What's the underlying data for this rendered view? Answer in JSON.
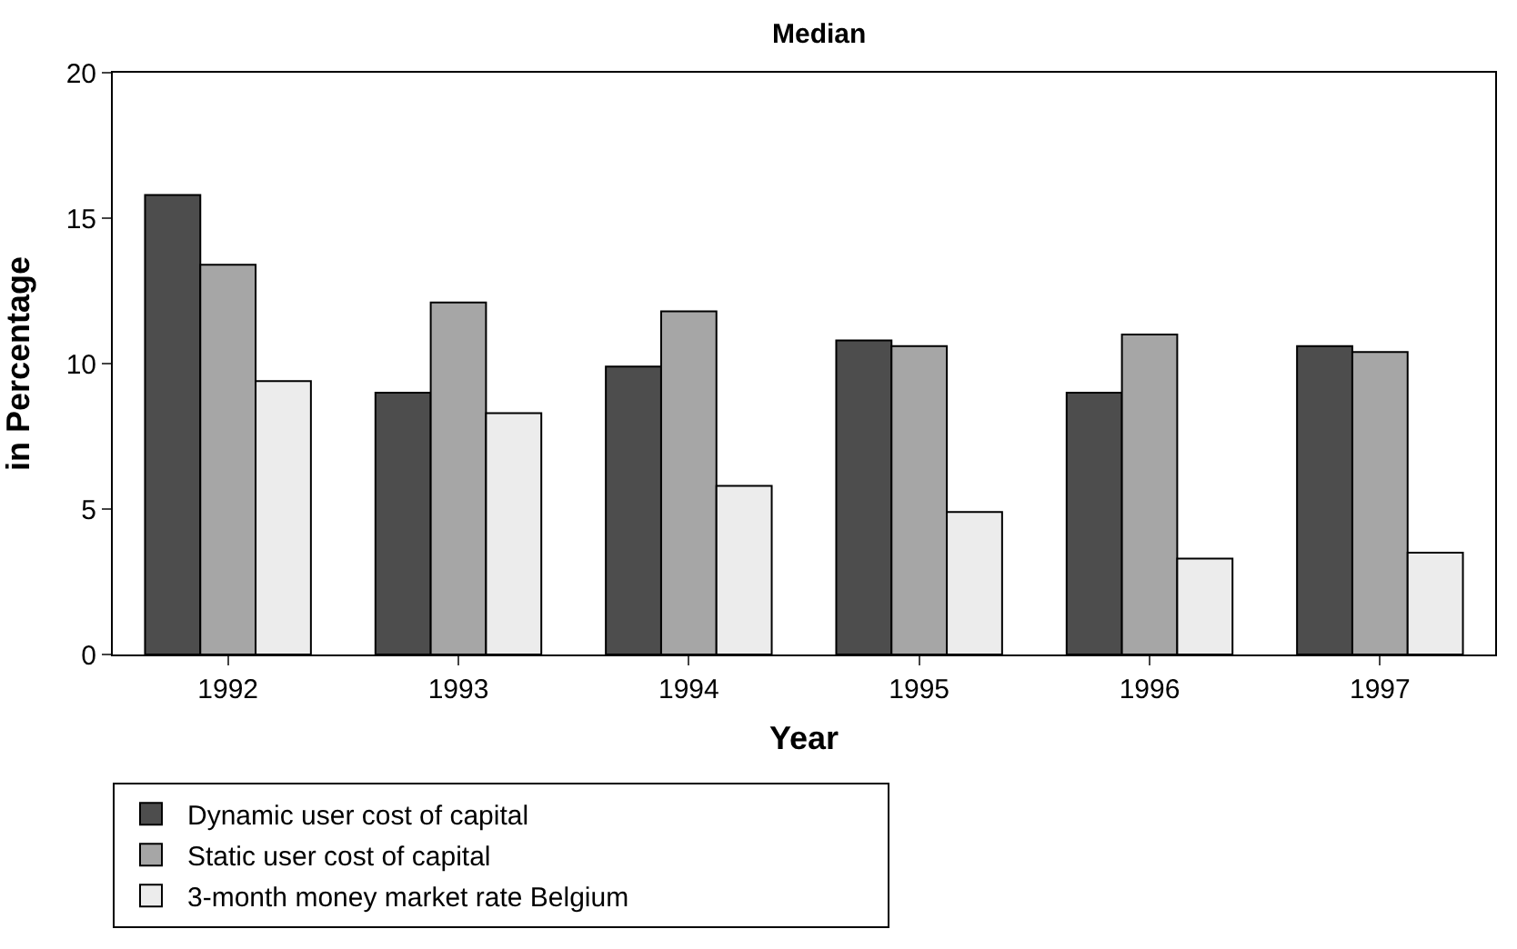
{
  "chart_data": {
    "type": "bar",
    "title": "Median",
    "xlabel": "Year",
    "ylabel": "in Percentage",
    "categories": [
      "1992",
      "1993",
      "1994",
      "1995",
      "1996",
      "1997"
    ],
    "series": [
      {
        "name": "Dynamic user cost of capital",
        "color": "#4d4d4d",
        "values": [
          15.8,
          9.0,
          9.9,
          10.8,
          9.0,
          10.6
        ]
      },
      {
        "name": "Static user cost of capital",
        "color": "#a6a6a6",
        "values": [
          13.4,
          12.1,
          11.8,
          10.6,
          11.0,
          10.4
        ]
      },
      {
        "name": "3-month money market rate Belgium",
        "color": "#ececec",
        "values": [
          9.4,
          8.3,
          5.8,
          4.9,
          3.3,
          3.5
        ]
      }
    ],
    "ylim": [
      0,
      20
    ],
    "yticks": [
      0,
      5,
      10,
      15,
      20
    ],
    "grid": false,
    "legend": "bottom"
  }
}
